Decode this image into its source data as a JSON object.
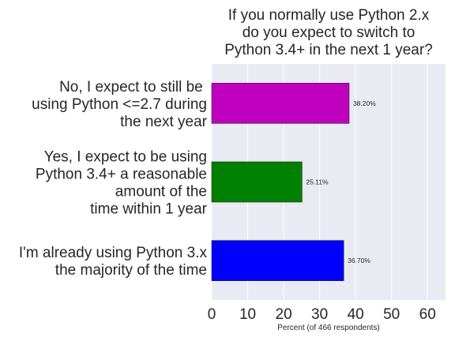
{
  "chart_data": {
    "type": "bar",
    "orientation": "horizontal",
    "title": "If you normally use Python 2.x\ndo you expect to switch to\nPython 3.4+ in the next 1 year?",
    "xlabel": "Percent (of 466 respondents)",
    "ylabel": "",
    "xlim": [
      0,
      65
    ],
    "xticks": [
      0,
      10,
      20,
      30,
      40,
      50,
      60
    ],
    "grid": true,
    "background": "#eaeaf2",
    "categories": [
      "No, I expect to still be \nusing Python <=2.7 during\nthe next year",
      "Yes, I expect to be using\nPython 3.4+ a reasonable\namount of the\ntime within 1 year",
      "I'm already using Python 3.x\nthe majority of the time"
    ],
    "values": [
      38.2,
      25.11,
      36.7
    ],
    "data_labels": [
      "38.20%",
      "25.11%",
      "36.70%"
    ],
    "colors": [
      "#bf00bf",
      "#008000",
      "#0000ff"
    ]
  }
}
